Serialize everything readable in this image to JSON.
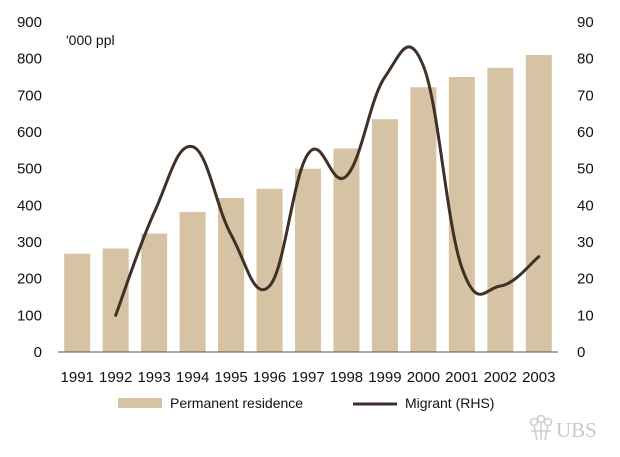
{
  "chart_data": {
    "type": "bar",
    "unit_label": "'000 ppl",
    "categories": [
      "1991",
      "1992",
      "1993",
      "1994",
      "1995",
      "1996",
      "1997",
      "1998",
      "1999",
      "2000",
      "2001",
      "2002",
      "2003"
    ],
    "series": [
      {
        "name": "Permanent residence",
        "type": "bar",
        "axis": "left",
        "color": "#d6c3a3",
        "values": [
          268,
          282,
          323,
          382,
          420,
          445,
          500,
          555,
          635,
          722,
          750,
          775,
          810
        ]
      },
      {
        "name": "Migrant (RHS)",
        "type": "line",
        "axis": "right",
        "color": "#3f3028",
        "values": [
          null,
          10,
          38,
          56,
          32,
          18,
          54,
          48,
          75,
          78,
          23,
          18,
          26
        ]
      }
    ],
    "y_left": {
      "min": 0,
      "max": 900,
      "step": 100
    },
    "y_right": {
      "min": 0,
      "max": 90,
      "step": 10
    },
    "legend_position": "bottom"
  },
  "watermark": {
    "text": "UBS"
  }
}
